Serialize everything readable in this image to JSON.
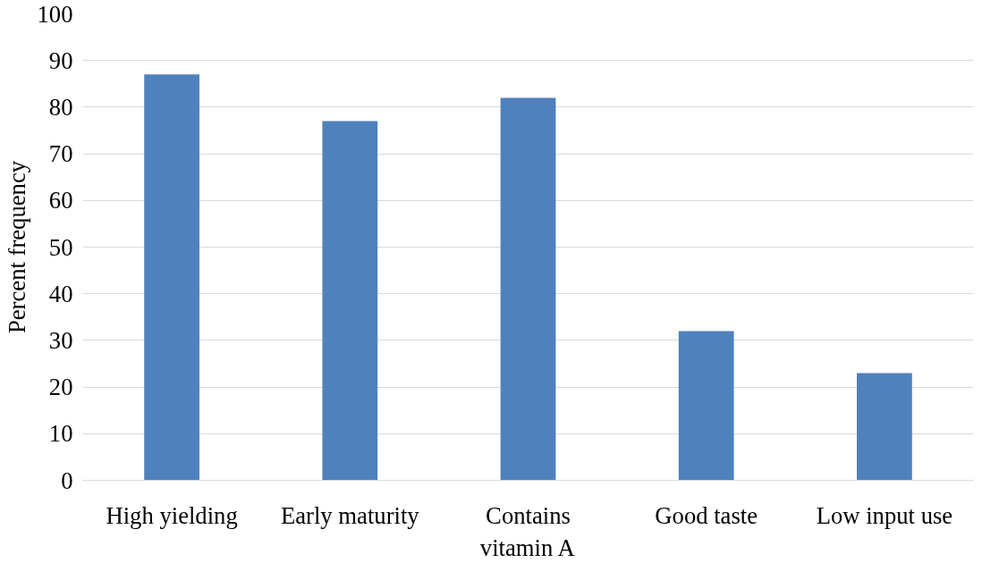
{
  "chart_data": {
    "type": "bar",
    "ylabel": "Percent frequency",
    "categories": [
      "High yielding",
      "Early maturity",
      "Contains vitamin A",
      "Good taste",
      "Low input use"
    ],
    "values": [
      87,
      77,
      82,
      32,
      23
    ],
    "color": "#4f81bd",
    "ylim": [
      0,
      100
    ],
    "yticks": [
      0,
      10,
      20,
      30,
      40,
      50,
      60,
      70,
      80,
      90,
      100
    ],
    "grid": "y"
  }
}
